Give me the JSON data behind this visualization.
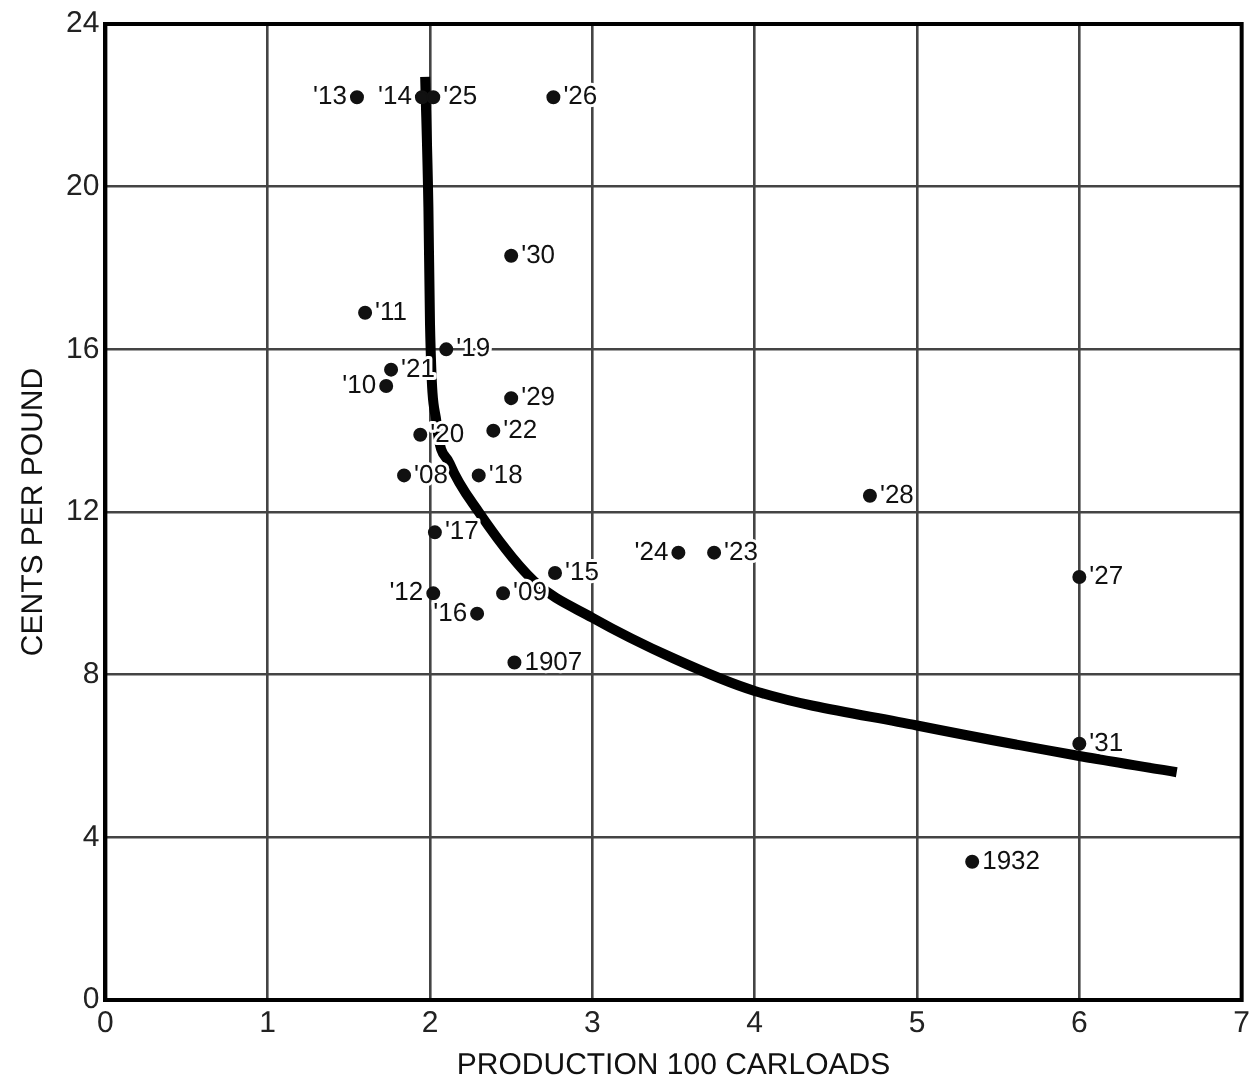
{
  "chart_data": {
    "type": "scatter",
    "xlabel": "PRODUCTION 100 CARLOADS",
    "ylabel": "CENTS PER POUND",
    "xlim": [
      0,
      7
    ],
    "ylim": [
      0,
      24
    ],
    "xticks": [
      0,
      1,
      2,
      3,
      4,
      5,
      6,
      7
    ],
    "yticks": [
      0,
      4,
      8,
      12,
      16,
      20,
      24
    ],
    "grid": true,
    "marker": "circle",
    "series": [
      {
        "color": "#111111",
        "x": [
          1.55,
          1.95,
          2.02,
          2.76,
          2.5,
          1.6,
          2.1,
          1.76,
          1.73,
          2.5,
          2.39,
          1.94,
          2.3,
          1.84,
          2.03,
          2.77,
          2.02,
          2.45,
          2.29,
          2.52,
          3.53,
          3.75,
          4.71,
          6.0,
          6.0,
          5.34
        ],
        "values": [
          22.2,
          22.2,
          22.2,
          22.2,
          18.3,
          16.9,
          16.0,
          15.5,
          15.1,
          14.8,
          14.0,
          13.9,
          12.9,
          12.9,
          11.5,
          10.5,
          10.0,
          10.0,
          9.5,
          8.3,
          11.0,
          11.0,
          12.4,
          10.4,
          6.3,
          3.4
        ]
      },
      {
        "type": "line",
        "color": "#000000",
        "marker": "none",
        "line_style": "solid",
        "x": [
          1.97,
          1.99,
          2.0,
          2.04,
          2.12,
          2.3,
          2.64,
          3.0,
          3.5,
          4.0,
          5.0,
          6.0,
          6.6
        ],
        "values": [
          22.7,
          19.5,
          16.6,
          14.2,
          13.2,
          12.0,
          10.3,
          9.4,
          8.4,
          7.6,
          6.75,
          6.0,
          5.6
        ]
      }
    ],
    "annotations": [
      {
        "text": "'13",
        "x": 1.55,
        "y": 22.2
      },
      {
        "text": "'14",
        "x": 1.95,
        "y": 22.2
      },
      {
        "text": "'25",
        "x": 2.02,
        "y": 22.2
      },
      {
        "text": "'26",
        "x": 2.76,
        "y": 22.2
      },
      {
        "text": "'30",
        "x": 2.5,
        "y": 18.3
      },
      {
        "text": "'11",
        "x": 1.6,
        "y": 16.9
      },
      {
        "text": "'19",
        "x": 2.1,
        "y": 16.0
      },
      {
        "text": "'21",
        "x": 1.76,
        "y": 15.5
      },
      {
        "text": "'10",
        "x": 1.73,
        "y": 15.1
      },
      {
        "text": "'29",
        "x": 2.5,
        "y": 14.8
      },
      {
        "text": "'22",
        "x": 2.39,
        "y": 14.0
      },
      {
        "text": "'20",
        "x": 1.94,
        "y": 13.9
      },
      {
        "text": "'18",
        "x": 2.3,
        "y": 12.9
      },
      {
        "text": "'08",
        "x": 1.84,
        "y": 12.9
      },
      {
        "text": "'17",
        "x": 2.03,
        "y": 11.5
      },
      {
        "text": "'15",
        "x": 2.77,
        "y": 10.5
      },
      {
        "text": "'12",
        "x": 2.02,
        "y": 10.0
      },
      {
        "text": "'09",
        "x": 2.45,
        "y": 10.0
      },
      {
        "text": "'16",
        "x": 2.29,
        "y": 9.5
      },
      {
        "text": "1907",
        "x": 2.52,
        "y": 8.3
      },
      {
        "text": "'24",
        "x": 3.53,
        "y": 11.0
      },
      {
        "text": "'23",
        "x": 3.75,
        "y": 11.0
      },
      {
        "text": "'28",
        "x": 4.71,
        "y": 12.4
      },
      {
        "text": "'27",
        "x": 6.0,
        "y": 10.4
      },
      {
        "text": "'31",
        "x": 6.0,
        "y": 6.3
      },
      {
        "text": "1932",
        "x": 5.34,
        "y": 3.4
      }
    ]
  }
}
